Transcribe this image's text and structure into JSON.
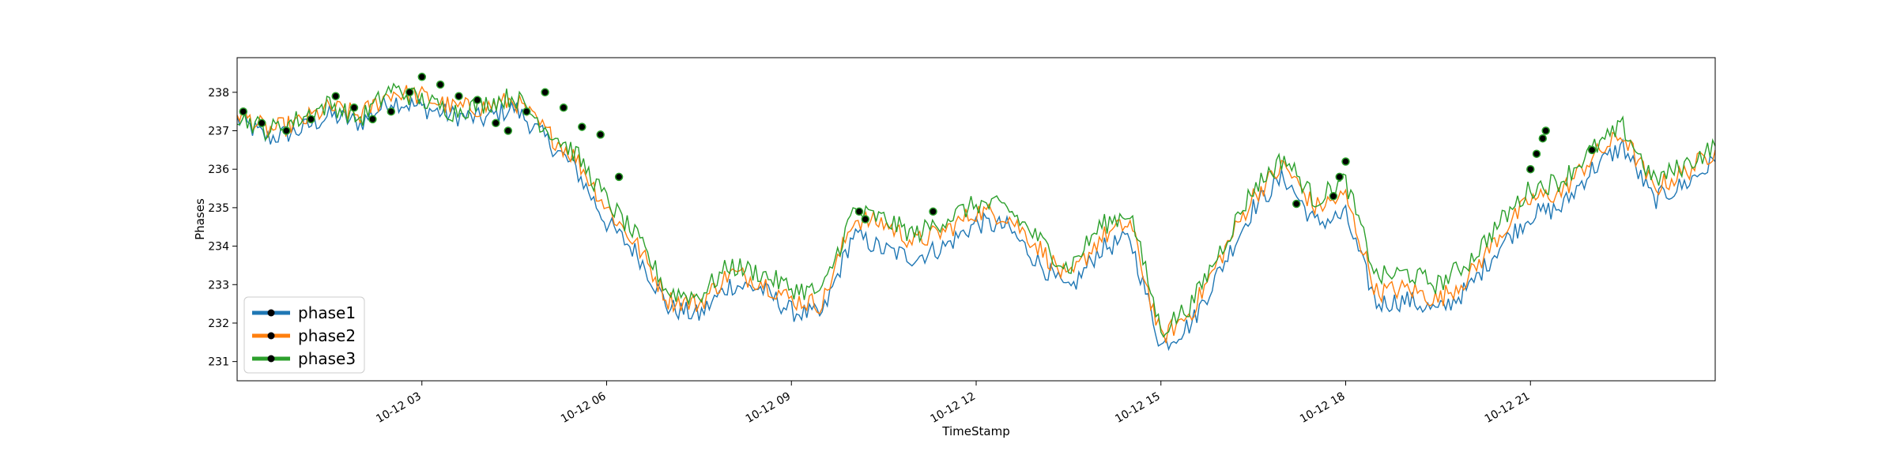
{
  "chart_data": {
    "type": "line",
    "title": "",
    "xlabel": "TimeStamp",
    "ylabel": "Phases",
    "ylim": [
      230.5,
      238.9
    ],
    "xlim_hours": [
      0,
      24
    ],
    "grid": false,
    "legend_placement": "lower-left",
    "x_tick_labels": [
      "10-12 03",
      "10-12 06",
      "10-12 09",
      "10-12 12",
      "10-12 15",
      "10-12 18",
      "10-12 21"
    ],
    "x_tick_hours": [
      3,
      6,
      9,
      12,
      15,
      18,
      21
    ],
    "y_ticks": [
      231,
      232,
      233,
      234,
      235,
      236,
      237,
      238
    ],
    "x": [
      0,
      0.5,
      1,
      1.5,
      2,
      2.5,
      3,
      3.5,
      4,
      4.5,
      5,
      5.5,
      6,
      6.5,
      7,
      7.5,
      8,
      8.5,
      9,
      9.5,
      10,
      10.5,
      11,
      11.5,
      12,
      12.5,
      13,
      13.5,
      14,
      14.5,
      15,
      15.5,
      16,
      16.5,
      17,
      17.5,
      18,
      18.5,
      19,
      19.5,
      20,
      20.5,
      21,
      21.5,
      22,
      22.5,
      23,
      23.5,
      24
    ],
    "series": [
      {
        "name": "phase1",
        "color": "#1f77b4",
        "values": [
          237.3,
          236.8,
          237.0,
          237.4,
          237.2,
          237.8,
          237.6,
          237.4,
          237.3,
          237.6,
          236.8,
          236.0,
          234.6,
          233.8,
          232.4,
          232.2,
          233.0,
          232.9,
          232.3,
          232.2,
          234.3,
          233.9,
          233.7,
          234.0,
          234.6,
          234.5,
          233.6,
          232.8,
          233.9,
          234.2,
          231.4,
          232.0,
          233.5,
          235.0,
          235.8,
          234.6,
          234.8,
          232.5,
          232.6,
          232.3,
          232.9,
          234.0,
          234.8,
          235.0,
          236.0,
          236.6,
          235.2,
          235.6,
          236.2
        ]
      },
      {
        "name": "phase2",
        "color": "#ff7f0e",
        "values": [
          237.5,
          237.0,
          237.2,
          237.6,
          237.4,
          238.0,
          237.9,
          237.6,
          237.6,
          237.8,
          237.0,
          236.3,
          235.0,
          234.0,
          232.6,
          232.5,
          233.3,
          233.1,
          232.6,
          232.5,
          234.7,
          234.6,
          234.1,
          234.4,
          234.9,
          234.8,
          234.0,
          233.1,
          234.2,
          234.6,
          231.6,
          232.3,
          233.8,
          235.3,
          236.1,
          235.0,
          235.3,
          232.8,
          232.9,
          232.6,
          233.2,
          234.3,
          235.2,
          235.4,
          236.3,
          236.9,
          235.5,
          235.9,
          236.5
        ]
      },
      {
        "name": "phase3",
        "color": "#2ca02c",
        "values": [
          237.4,
          237.0,
          237.3,
          237.7,
          237.3,
          238.1,
          237.8,
          237.5,
          237.7,
          237.9,
          237.1,
          236.4,
          235.2,
          234.2,
          232.8,
          232.7,
          233.5,
          233.3,
          232.9,
          232.8,
          234.9,
          234.7,
          234.3,
          234.7,
          235.1,
          235.0,
          234.2,
          233.4,
          234.5,
          234.9,
          231.8,
          232.5,
          234.0,
          235.5,
          236.3,
          235.2,
          235.7,
          233.2,
          233.3,
          233.0,
          233.6,
          234.6,
          235.5,
          235.7,
          236.5,
          237.1,
          235.7,
          236.1,
          236.6
        ]
      }
    ],
    "markers_note": "black circles",
    "marker_points": [
      {
        "x": 0.1,
        "y": 237.5
      },
      {
        "x": 0.4,
        "y": 237.2
      },
      {
        "x": 0.8,
        "y": 237.0
      },
      {
        "x": 1.2,
        "y": 237.3
      },
      {
        "x": 1.6,
        "y": 237.9
      },
      {
        "x": 1.9,
        "y": 237.6
      },
      {
        "x": 2.2,
        "y": 237.3
      },
      {
        "x": 2.5,
        "y": 237.5
      },
      {
        "x": 2.8,
        "y": 238.0
      },
      {
        "x": 3.0,
        "y": 238.4
      },
      {
        "x": 3.3,
        "y": 238.2
      },
      {
        "x": 3.6,
        "y": 237.9
      },
      {
        "x": 3.9,
        "y": 237.8
      },
      {
        "x": 4.2,
        "y": 237.2
      },
      {
        "x": 4.4,
        "y": 237.0
      },
      {
        "x": 4.7,
        "y": 237.5
      },
      {
        "x": 5.0,
        "y": 238.0
      },
      {
        "x": 5.3,
        "y": 237.6
      },
      {
        "x": 5.6,
        "y": 237.1
      },
      {
        "x": 5.9,
        "y": 236.9
      },
      {
        "x": 6.2,
        "y": 235.8
      },
      {
        "x": 10.1,
        "y": 234.9
      },
      {
        "x": 10.2,
        "y": 234.7
      },
      {
        "x": 11.3,
        "y": 234.9
      },
      {
        "x": 17.2,
        "y": 235.1
      },
      {
        "x": 17.8,
        "y": 235.3
      },
      {
        "x": 17.9,
        "y": 235.8
      },
      {
        "x": 18.0,
        "y": 236.2
      },
      {
        "x": 21.0,
        "y": 236.0
      },
      {
        "x": 21.1,
        "y": 236.4
      },
      {
        "x": 21.2,
        "y": 236.8
      },
      {
        "x": 21.25,
        "y": 237.0
      },
      {
        "x": 22.0,
        "y": 236.5
      }
    ]
  }
}
